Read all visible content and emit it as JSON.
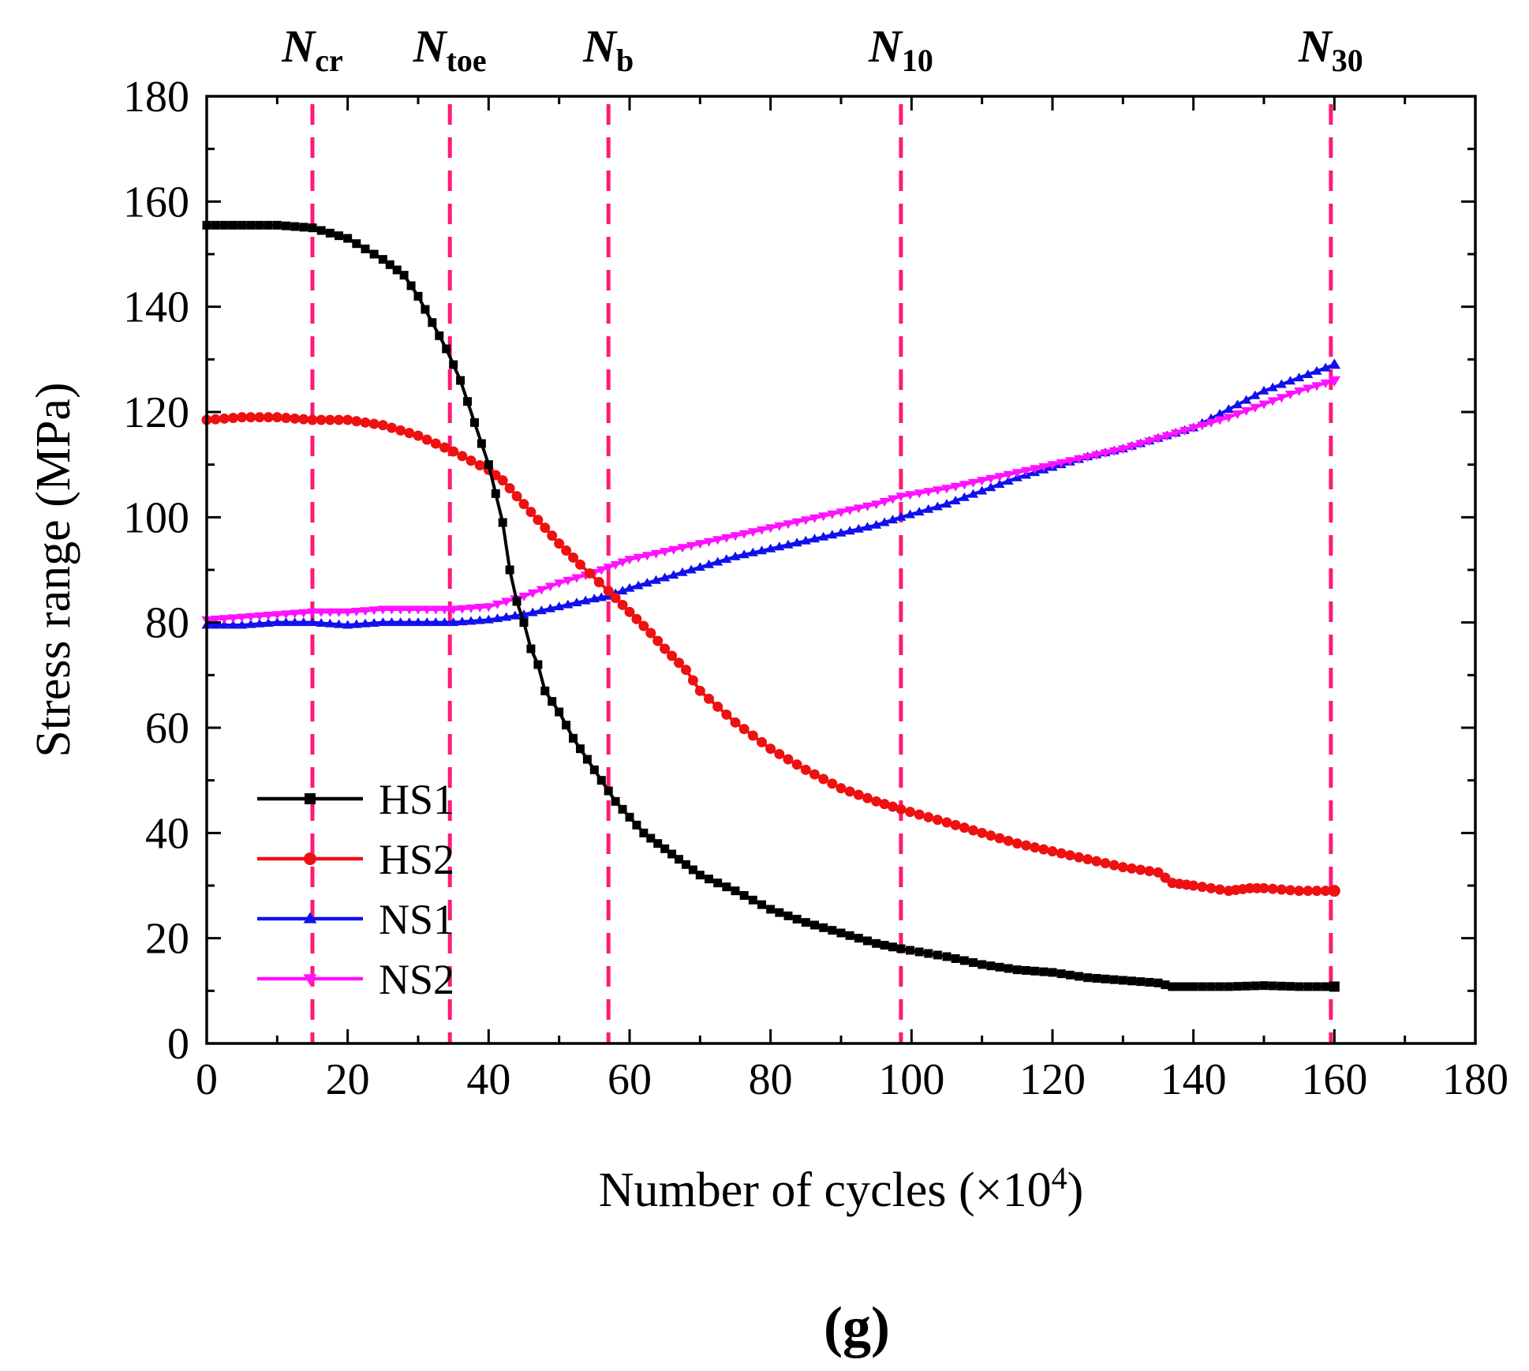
{
  "chart_data": {
    "type": "line",
    "panel_label": "(g)",
    "xlabel_main": "Number of cycles (×10",
    "xlabel_exp": "4",
    "xlabel_close": ")",
    "ylabel": "Stress range (MPa)",
    "xlim": [
      0,
      180
    ],
    "ylim": [
      0,
      180
    ],
    "x_ticks": [
      "0",
      "20",
      "40",
      "60",
      "80",
      "100",
      "120",
      "140",
      "160",
      "180"
    ],
    "y_ticks": [
      "0",
      "20",
      "40",
      "60",
      "80",
      "100",
      "120",
      "140",
      "160",
      "180"
    ],
    "legend_position": "bottom-left",
    "vlines": [
      {
        "main": "N",
        "sub": "cr",
        "x": 15,
        "color": "#ff1a75"
      },
      {
        "main": "N",
        "sub": "toe",
        "x": 34.5,
        "color": "#ff1a75"
      },
      {
        "main": "N",
        "sub": "b",
        "x": 57,
        "color": "#ff1a75"
      },
      {
        "main": "N",
        "sub": "10",
        "x": 98.5,
        "color": "#ff1a75"
      },
      {
        "main": "N",
        "sub": "30",
        "x": 159.5,
        "color": "#ff1a75"
      }
    ],
    "series": [
      {
        "name": "HS1",
        "color": "#000000",
        "marker": "square",
        "x": [
          0,
          5,
          10,
          15,
          20,
          25,
          28,
          30,
          32,
          34,
          36,
          38,
          40,
          42,
          43,
          44,
          45,
          46,
          47,
          48,
          50,
          52,
          54,
          55,
          57,
          58,
          60,
          62,
          65,
          68,
          70,
          75,
          80,
          85,
          90,
          95,
          98.5,
          105,
          110,
          115,
          120,
          125,
          130,
          135,
          137,
          140,
          145,
          150,
          155,
          160
        ],
        "values": [
          155.5,
          155.5,
          155.5,
          155,
          153,
          149,
          146,
          142,
          137,
          132,
          126,
          118,
          110,
          99,
          90,
          84,
          80,
          75,
          72,
          67,
          63,
          58,
          54,
          52,
          48,
          46,
          43,
          40,
          37,
          34,
          32,
          29,
          25.5,
          23,
          21,
          19,
          18,
          16.5,
          15,
          14,
          13.5,
          12.5,
          12,
          11.5,
          10.8,
          10.8,
          10.8,
          11,
          10.8,
          10.8
        ]
      },
      {
        "name": "HS2",
        "color": "#ee1111",
        "marker": "circle",
        "x": [
          0,
          5,
          10,
          15,
          20,
          25,
          30,
          35,
          40,
          42,
          45,
          48,
          50,
          53,
          57,
          60,
          63,
          65,
          68,
          70,
          75,
          80,
          85,
          90,
          95,
          98.5,
          105,
          110,
          115,
          120,
          125,
          130,
          135,
          137,
          140,
          145,
          148,
          150,
          155,
          160
        ],
        "values": [
          118.5,
          119,
          119,
          118.5,
          118.5,
          117.5,
          115.5,
          112.5,
          109,
          107,
          102.5,
          98,
          95,
          91,
          86,
          82,
          78,
          75,
          71,
          67,
          61,
          56,
          52,
          48.5,
          46,
          44.5,
          42,
          40,
          38,
          36.5,
          35,
          33.5,
          32.5,
          30.5,
          30,
          29,
          29.5,
          29.5,
          29,
          29
        ]
      },
      {
        "name": "NS1",
        "color": "#1010ee",
        "marker": "triangle-up",
        "x": [
          0,
          5,
          10,
          15,
          20,
          25,
          30,
          35,
          40,
          45,
          50,
          55,
          57,
          60,
          65,
          70,
          75,
          80,
          85,
          90,
          95,
          98.5,
          105,
          110,
          115,
          120,
          125,
          130,
          135,
          140,
          145,
          150,
          155,
          160
        ],
        "values": [
          79.5,
          79.5,
          80,
          80,
          79.5,
          80,
          80,
          80,
          80.5,
          81.5,
          83,
          84.5,
          85,
          86.5,
          88.5,
          90.5,
          92.5,
          94,
          95.5,
          97,
          98.5,
          100,
          102.5,
          105,
          107.5,
          109.5,
          111.5,
          113,
          115,
          117,
          120.5,
          124,
          126.5,
          129
        ]
      },
      {
        "name": "NS2",
        "color": "#ff10ff",
        "marker": "triangle-down",
        "x": [
          0,
          5,
          10,
          15,
          20,
          25,
          30,
          35,
          40,
          45,
          50,
          55,
          57,
          60,
          65,
          70,
          75,
          80,
          85,
          90,
          95,
          98.5,
          105,
          110,
          115,
          120,
          125,
          130,
          135,
          140,
          145,
          150,
          155,
          160
        ],
        "values": [
          80.5,
          81,
          81.5,
          82,
          82,
          82.5,
          82.5,
          82.5,
          83,
          85,
          87.5,
          89.5,
          90.5,
          92,
          93.5,
          95,
          96.5,
          98,
          99.5,
          101,
          102.5,
          104,
          105.5,
          107,
          108.5,
          110,
          111.5,
          113,
          115,
          117,
          119,
          121.5,
          124,
          126
        ]
      }
    ]
  }
}
